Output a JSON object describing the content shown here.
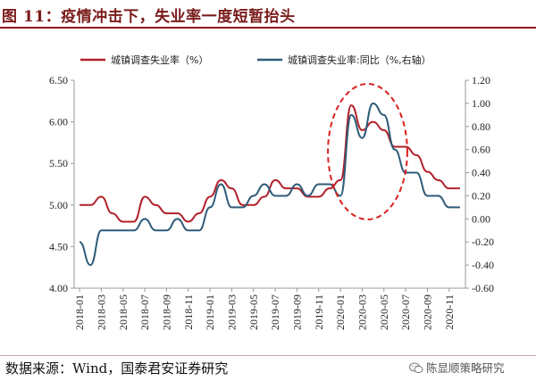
{
  "title": "图 11：疫情冲击下，失业率一度短暂抬头",
  "source": "数据来源：Wind，国泰君安证券研究",
  "watermark": "陈显顺策略研究",
  "chart_data": {
    "type": "line",
    "x": [
      "2018-01",
      "2018-02",
      "2018-03",
      "2018-04",
      "2018-05",
      "2018-06",
      "2018-07",
      "2018-08",
      "2018-09",
      "2018-10",
      "2018-11",
      "2018-12",
      "2019-01",
      "2019-02",
      "2019-03",
      "2019-04",
      "2019-05",
      "2019-06",
      "2019-07",
      "2019-08",
      "2019-09",
      "2019-10",
      "2019-11",
      "2019-12",
      "2020-01",
      "2020-02",
      "2020-03",
      "2020-04",
      "2020-05",
      "2020-06",
      "2020-07",
      "2020-08",
      "2020-09",
      "2020-10",
      "2020-11",
      "2020-12"
    ],
    "x_tick_labels": [
      "2018-01",
      "2018-03",
      "2018-05",
      "2018-07",
      "2018-09",
      "2018-11",
      "2019-01",
      "2019-03",
      "2019-05",
      "2019-07",
      "2019-09",
      "2019-11",
      "2020-01",
      "2020-03",
      "2020-05",
      "2020-07",
      "2020-09",
      "2020-11"
    ],
    "series": [
      {
        "name": "城镇调查失业率（%）",
        "axis": "left",
        "color": "#b2202a",
        "values": [
          5.0,
          5.0,
          5.1,
          4.9,
          4.8,
          4.8,
          5.1,
          5.0,
          4.9,
          4.9,
          4.8,
          4.9,
          5.1,
          5.3,
          5.2,
          5.0,
          5.0,
          5.1,
          5.3,
          5.2,
          5.2,
          5.1,
          5.1,
          5.2,
          5.3,
          6.2,
          5.9,
          6.0,
          5.9,
          5.7,
          5.7,
          5.6,
          5.4,
          5.3,
          5.2,
          5.2
        ]
      },
      {
        "name": "城镇调查失业率:同比（%,右轴）",
        "axis": "right",
        "color": "#2e5b78",
        "values": [
          -0.2,
          -0.4,
          -0.1,
          -0.1,
          -0.1,
          -0.1,
          -0.0,
          -0.1,
          -0.1,
          -0.0,
          -0.1,
          -0.1,
          0.1,
          0.3,
          0.1,
          0.1,
          0.2,
          0.3,
          0.2,
          0.2,
          0.3,
          0.2,
          0.3,
          0.3,
          0.2,
          0.9,
          0.7,
          1.0,
          0.9,
          0.6,
          0.4,
          0.4,
          0.2,
          0.2,
          0.1,
          0.1
        ]
      }
    ],
    "y_left": {
      "lim": [
        4.0,
        6.5
      ],
      "ticks": [
        "4.00",
        "4.50",
        "5.00",
        "5.50",
        "6.00",
        "6.50"
      ]
    },
    "y_right": {
      "lim": [
        -0.6,
        1.2
      ],
      "ticks": [
        "-0.60",
        "-0.40",
        "-0.20",
        "0.00",
        "0.20",
        "0.40",
        "0.60",
        "0.80",
        "1.00",
        "1.20"
      ]
    },
    "grid": false,
    "legend_position": "top",
    "annotation": {
      "type": "dashed-ellipse",
      "color": "#d9211e",
      "around_x": [
        "2020-01",
        "2020-06"
      ]
    }
  }
}
